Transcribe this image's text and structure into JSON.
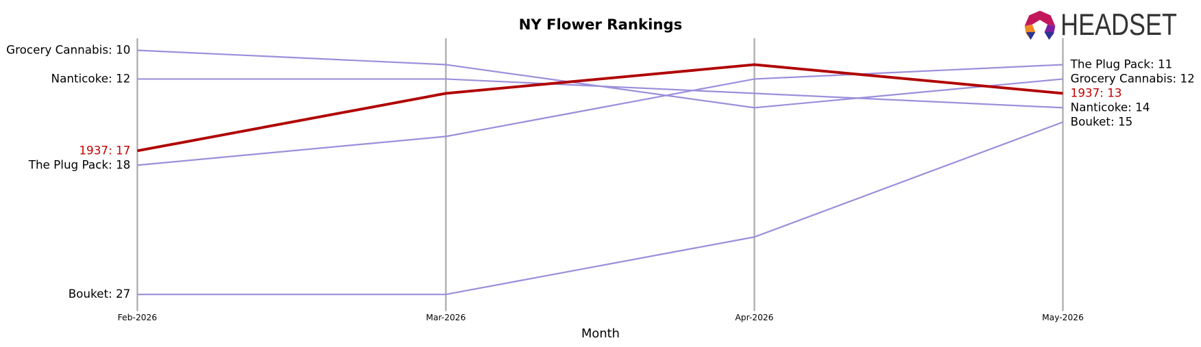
{
  "logo": "HEADSET",
  "chart_data": {
    "type": "line",
    "title": "NY Flower Rankings",
    "x_label": "Month",
    "categories": [
      "Feb-2026",
      "Mar-2026",
      "Apr-2026",
      "May-2026"
    ],
    "ylim": [
      28,
      9
    ],
    "grid": true,
    "series": [
      {
        "name": "Grocery Cannabis",
        "color": "#9b8fdb",
        "label_color": "#000000",
        "line_width": 2,
        "values": [
          10,
          11,
          14,
          12
        ],
        "value_labels": [
          "Grocery Cannabis: 10",
          null,
          null,
          "Grocery Cannabis: 12"
        ]
      },
      {
        "name": "Nanticoke",
        "color": "#9b8fdb",
        "label_color": "#000000",
        "line_width": 2,
        "values": [
          12,
          12,
          13,
          14
        ],
        "value_labels": [
          "Nanticoke: 12",
          null,
          null,
          "Nanticoke: 14"
        ]
      },
      {
        "name": "The Plug Pack",
        "color": "#9b8fdb",
        "label_color": "#000000",
        "line_width": 2,
        "values": [
          18,
          16,
          12,
          11
        ],
        "value_labels": [
          "The Plug Pack: 18",
          null,
          null,
          "The Plug Pack: 11"
        ]
      },
      {
        "name": "Bouket",
        "color": "#9b8fdb",
        "label_color": "#000000",
        "line_width": 2,
        "values": [
          27,
          27,
          23,
          15
        ],
        "value_labels": [
          "Bouket: 27",
          null,
          null,
          "Bouket: 15"
        ]
      },
      {
        "name": "1937",
        "color": "#b00000",
        "label_color": "#c00000",
        "line_width": 3.5,
        "values": [
          17,
          13,
          11,
          13
        ],
        "value_labels": [
          "1937: 17",
          null,
          null,
          "1937: 13"
        ]
      }
    ]
  }
}
